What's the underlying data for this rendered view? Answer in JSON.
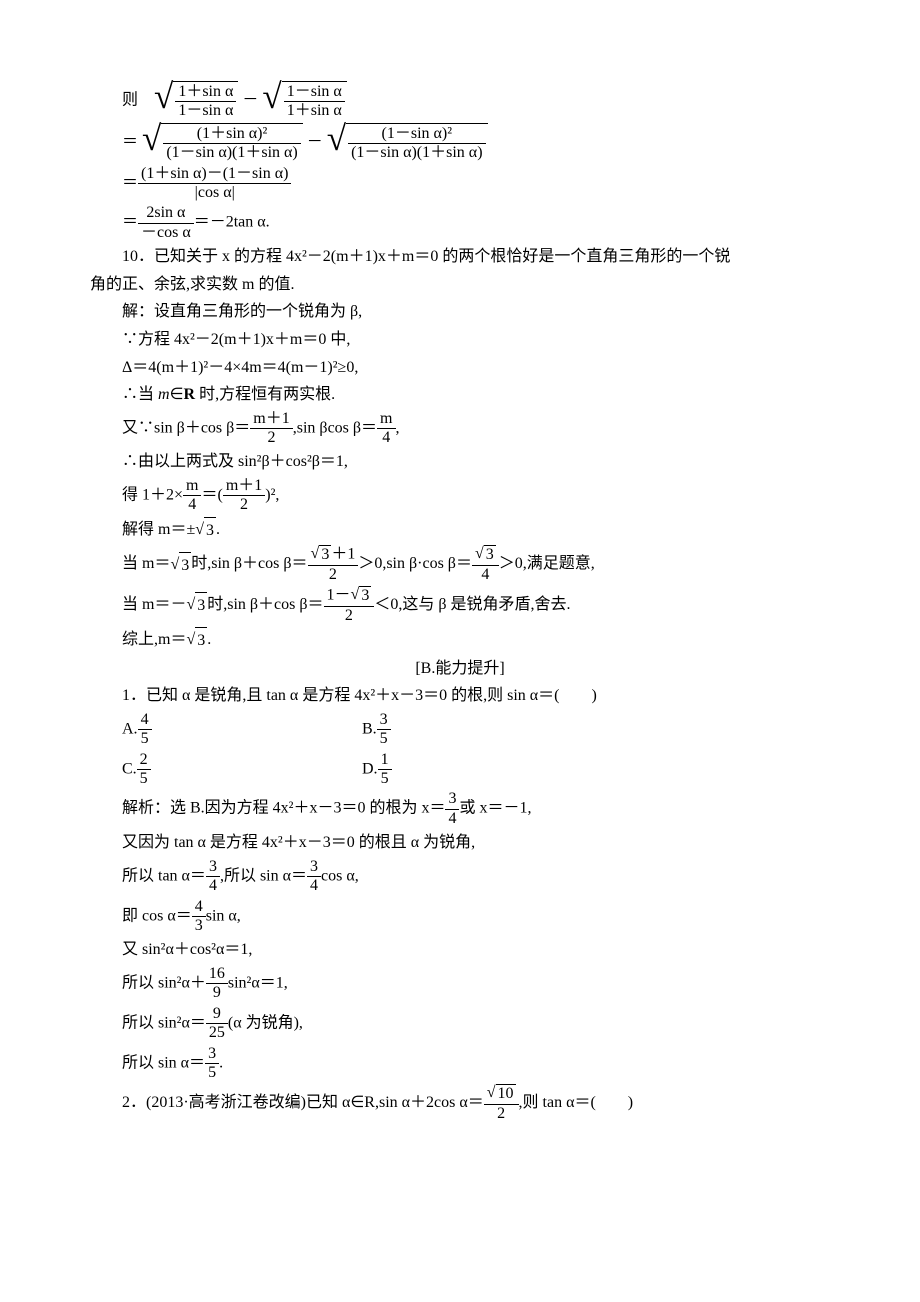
{
  "block1": {
    "l1_prefix": "则",
    "l1_expr": {
      "sqrt1_num": "1＋sin α",
      "sqrt1_den": "1－sin α",
      "minus": "－",
      "sqrt2_num": "1－sin α",
      "sqrt2_den": "1＋sin α"
    },
    "l2": {
      "eq": "＝",
      "sqrt1_num": "(1＋sin α)²",
      "sqrt1_den": "(1－sin α)(1＋sin α)",
      "minus": "－",
      "sqrt2_num": "(1－sin α)²",
      "sqrt2_den": "(1－sin α)(1＋sin α)"
    },
    "l3": {
      "eq": "＝",
      "num": "(1＋sin α)－(1－sin α)",
      "den": "|cos α|"
    },
    "l4": {
      "eq": "＝",
      "num": "2sin α",
      "den": "－cos α",
      "tail": "＝－2tan α."
    }
  },
  "q10": {
    "stem1": "10．已知关于 x 的方程 4x²－2(m＋1)x＋m＝0 的两个根恰好是一个直角三角形的一个锐",
    "stem2": "角的正、余弦,求实数 m 的值.",
    "s1": "解：设直角三角形的一个锐角为 β,",
    "s2": "∵方程 4x²－2(m＋1)x＋m＝0 中,",
    "s3": "Δ＝4(m＋1)²－4×4m＝4(m－1)²≥0,",
    "s4": "∴当 m∈R 时,方程恒有两实根.",
    "s5_a": "又∵sin β＋cos β＝",
    "s5_num1": "m＋1",
    "s5_den1": "2",
    "s5_b": ",sin βcos β＝",
    "s5_num2": "m",
    "s5_den2": "4",
    "s5_c": ",",
    "s6": "∴由以上两式及 sin²β＋cos²β＝1,",
    "s7_a": "得 1＋2×",
    "s7_num1": "m",
    "s7_den1": "4",
    "s7_b": "＝(",
    "s7_num2": "m＋1",
    "s7_den2": "2",
    "s7_c": ")²,",
    "s8_a": "解得 m＝±",
    "s8_rad": "3",
    "s8_b": ".",
    "s9_a": "当 m＝",
    "s9_rad": "3",
    "s9_b": "时,sin β＋cos β＝",
    "s9_num1top": "3",
    "s9_num1tail": "＋1",
    "s9_den1": "2",
    "s9_c": "＞0,sin β·cos β＝",
    "s9_num2top": "3",
    "s9_den2": "4",
    "s9_d": "＞0,满足题意,",
    "s10_a": "当 m＝－",
    "s10_rad": "3",
    "s10_b": "时,sin β＋cos β＝",
    "s10_numpre": "1－",
    "s10_numrad": "3",
    "s10_den": "2",
    "s10_c": "＜0,这与 β 是锐角矛盾,舍去.",
    "s11_a": "综上,m＝",
    "s11_rad": "3",
    "s11_b": "."
  },
  "sectionB": "[B.能力提升]",
  "q1": {
    "stem": "1．已知 α 是锐角,且 tan α 是方程 4x²＋x－3＝0 的根,则 sin α＝(　　)",
    "optA_pre": "A.",
    "optA_num": "4",
    "optA_den": "5",
    "optB_pre": "B.",
    "optB_num": "3",
    "optB_den": "5",
    "optC_pre": "C.",
    "optC_num": "2",
    "optC_den": "5",
    "optD_pre": "D.",
    "optD_num": "1",
    "optD_den": "5",
    "s1_a": "解析：选 B.因为方程 4x²＋x－3＝0 的根为 x＝",
    "s1_num": "3",
    "s1_den": "4",
    "s1_b": "或 x＝－1,",
    "s2": "又因为 tan α 是方程 4x²＋x－3＝0 的根且 α 为锐角,",
    "s3_a": "所以 tan α＝",
    "s3_num1": "3",
    "s3_den1": "4",
    "s3_b": ",所以 sin α＝",
    "s3_num2": "3",
    "s3_den2": "4",
    "s3_c": "cos α,",
    "s4_a": "即 cos α＝",
    "s4_num": "4",
    "s4_den": "3",
    "s4_b": "sin α,",
    "s5": "又 sin²α＋cos²α＝1,",
    "s6_a": "所以 sin²α＋",
    "s6_num": "16",
    "s6_den": "9",
    "s6_b": "sin²α＝1,",
    "s7_a": "所以 sin²α＝",
    "s7_num": "9",
    "s7_den": "25",
    "s7_b": "(α 为锐角),",
    "s8_a": "所以 sin α＝",
    "s8_num": "3",
    "s8_den": "5",
    "s8_b": "."
  },
  "q2": {
    "stem_a": "2．(2013·高考浙江卷改编)已知 α∈R,sin α＋2cos α＝",
    "num_rad": "10",
    "den": "2",
    "stem_b": ",则 tan α＝(　　)"
  }
}
